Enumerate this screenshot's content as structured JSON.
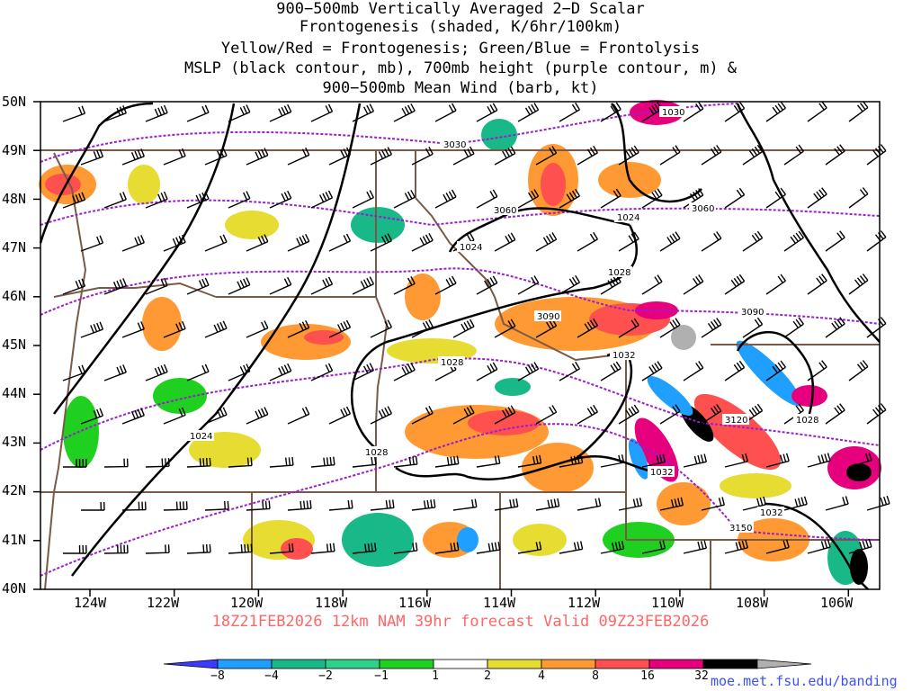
{
  "title_lines": [
    "900−500mb Vertically Averaged 2−D Scalar",
    "Frontogenesis (shaded, K/6hr/100km)",
    "Yellow/Red = Frontogenesis;  Green/Blue = Frontolysis",
    "MSLP (black contour, mb), 700mb height (purple contour, m) &",
    "900−500mb Mean Wind (barb, kt)"
  ],
  "lat_labels": [
    "50N",
    "49N",
    "48N",
    "47N",
    "46N",
    "45N",
    "44N",
    "43N",
    "42N",
    "41N",
    "40N"
  ],
  "lon_labels": [
    "124W",
    "122W",
    "120W",
    "118W",
    "116W",
    "114W",
    "112W",
    "110W",
    "108W",
    "106W"
  ],
  "footer": "18Z21FEB2026 12km NAM 39hr forecast Valid 09Z23FEB2026",
  "credit": "moe.met.fsu.edu/banding",
  "colorbar": {
    "labels": [
      "−8",
      "−4",
      "−2",
      "−1",
      "1",
      "2",
      "4",
      "8",
      "16",
      "32"
    ],
    "colors": [
      "#3b3bff",
      "#1f9fff",
      "#18b888",
      "#2fd08a",
      "#20d020",
      "#ffffff",
      "#e6dc32",
      "#ff9933",
      "#ff5050",
      "#e6007e",
      "#000000",
      "#b0b0b0"
    ]
  },
  "contour_labels": {
    "mslp": [
      "1030",
      "1024",
      "1024",
      "1028",
      "1032",
      "1028",
      "1024",
      "1028",
      "1032",
      "1032",
      "1028"
    ],
    "height": [
      "3030",
      "3060",
      "3060",
      "3090",
      "3090",
      "3120",
      "3150"
    ]
  },
  "colors": {
    "mslp": "#000000",
    "height": "#9a1fcc",
    "borders": "#7a5a46",
    "footer": "#ff6666",
    "credit": "#3b4fff"
  }
}
